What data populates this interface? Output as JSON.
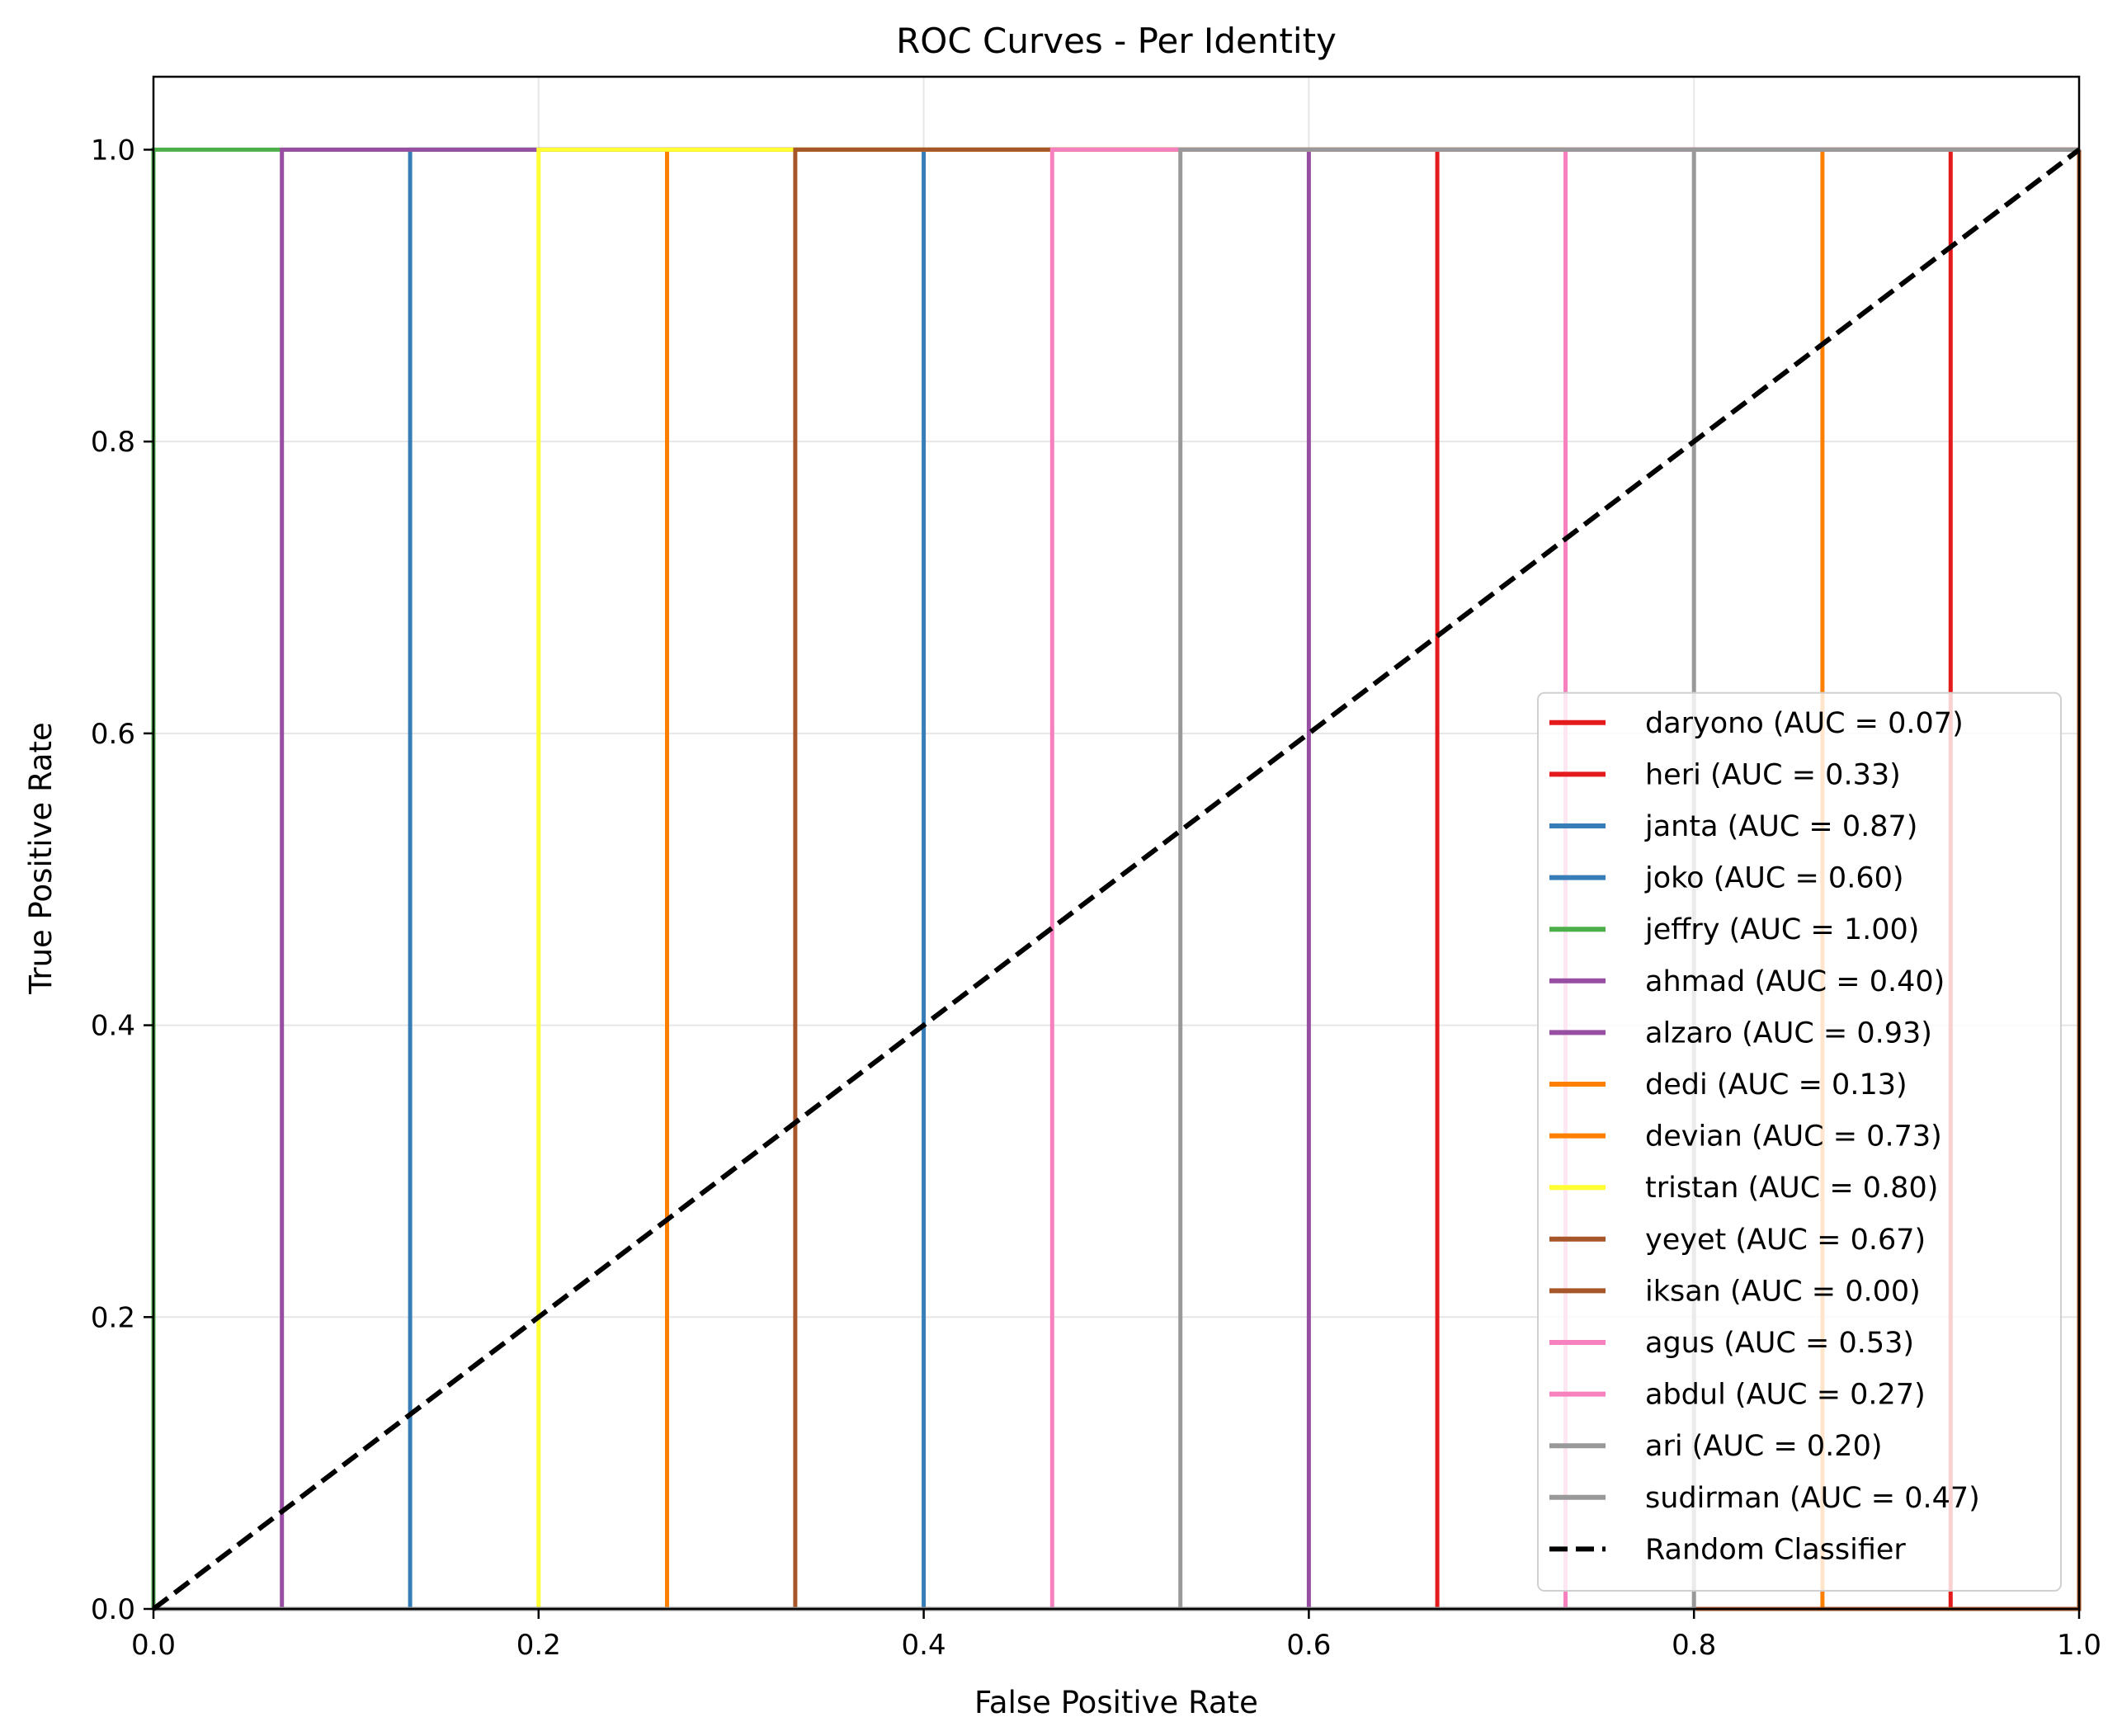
{
  "chart_data": {
    "type": "line",
    "title": "ROC Curves - Per Identity",
    "xlabel": "False Positive Rate",
    "ylabel": "True Positive Rate",
    "xlim": [
      0.0,
      1.0
    ],
    "ylim": [
      0.0,
      1.05
    ],
    "xticks": [
      0.0,
      0.2,
      0.4,
      0.6,
      0.8,
      1.0
    ],
    "yticks": [
      0.0,
      0.2,
      0.4,
      0.6,
      0.8,
      1.0
    ],
    "xtick_labels": [
      "0.0",
      "0.2",
      "0.4",
      "0.6",
      "0.8",
      "1.0"
    ],
    "ytick_labels": [
      "0.0",
      "0.2",
      "0.4",
      "0.6",
      "0.8",
      "1.0"
    ],
    "grid": true,
    "legend_position": "lower-right",
    "series": [
      {
        "name": "daryono (AUC = 0.07)",
        "color": "#e41a1c",
        "x": [
          0,
          0.9333,
          0.9333,
          1.0
        ],
        "y": [
          0,
          0,
          1,
          1
        ]
      },
      {
        "name": "heri (AUC = 0.33)",
        "color": "#e41a1c",
        "x": [
          0,
          0.6667,
          0.6667,
          1.0
        ],
        "y": [
          0,
          0,
          1,
          1
        ]
      },
      {
        "name": "janta (AUC = 0.87)",
        "color": "#377eb8",
        "x": [
          0,
          0.1333,
          0.1333,
          1.0
        ],
        "y": [
          0,
          0,
          1,
          1
        ]
      },
      {
        "name": "joko (AUC = 0.60)",
        "color": "#377eb8",
        "x": [
          0,
          0.4,
          0.4,
          1.0
        ],
        "y": [
          0,
          0,
          1,
          1
        ]
      },
      {
        "name": "jeffry (AUC = 1.00)",
        "color": "#4daf4a",
        "x": [
          0,
          0,
          1.0
        ],
        "y": [
          0,
          1,
          1
        ]
      },
      {
        "name": "ahmad (AUC = 0.40)",
        "color": "#984ea3",
        "x": [
          0,
          0.6,
          0.6,
          1.0
        ],
        "y": [
          0,
          0,
          1,
          1
        ]
      },
      {
        "name": "alzaro (AUC = 0.93)",
        "color": "#984ea3",
        "x": [
          0,
          0.0667,
          0.0667,
          1.0
        ],
        "y": [
          0,
          0,
          1,
          1
        ]
      },
      {
        "name": "dedi (AUC = 0.13)",
        "color": "#ff7f00",
        "x": [
          0,
          0.8667,
          0.8667,
          1.0
        ],
        "y": [
          0,
          0,
          1,
          1
        ]
      },
      {
        "name": "devian (AUC = 0.73)",
        "color": "#ff7f00",
        "x": [
          0,
          0.2667,
          0.2667,
          1.0
        ],
        "y": [
          0,
          0,
          1,
          1
        ]
      },
      {
        "name": "tristan (AUC = 0.80)",
        "color": "#ffff33",
        "x": [
          0,
          0.2,
          0.2,
          1.0
        ],
        "y": [
          0,
          0,
          1,
          1
        ]
      },
      {
        "name": "yeyet (AUC = 0.67)",
        "color": "#a65628",
        "x": [
          0,
          0.3333,
          0.3333,
          1.0
        ],
        "y": [
          0,
          0,
          1,
          1
        ]
      },
      {
        "name": "iksan (AUC = 0.00)",
        "color": "#a65628",
        "x": [
          0,
          1.0,
          1.0
        ],
        "y": [
          0,
          0,
          1
        ]
      },
      {
        "name": "agus (AUC = 0.53)",
        "color": "#f781bf",
        "x": [
          0,
          0.4667,
          0.4667,
          1.0
        ],
        "y": [
          0,
          0,
          1,
          1
        ]
      },
      {
        "name": "abdul (AUC = 0.27)",
        "color": "#f781bf",
        "x": [
          0,
          0.7333,
          0.7333,
          1.0
        ],
        "y": [
          0,
          0,
          1,
          1
        ]
      },
      {
        "name": "ari (AUC = 0.20)",
        "color": "#999999",
        "x": [
          0,
          0.8,
          0.8,
          1.0
        ],
        "y": [
          0,
          0,
          1,
          1
        ]
      },
      {
        "name": "sudirman (AUC = 0.47)",
        "color": "#999999",
        "x": [
          0,
          0.5333,
          0.5333,
          1.0
        ],
        "y": [
          0,
          0,
          1,
          1
        ]
      }
    ],
    "reference_line": {
      "name": "Random Classifier",
      "color": "#000000",
      "style": "dashed",
      "x": [
        0,
        1
      ],
      "y": [
        0,
        1
      ]
    }
  }
}
